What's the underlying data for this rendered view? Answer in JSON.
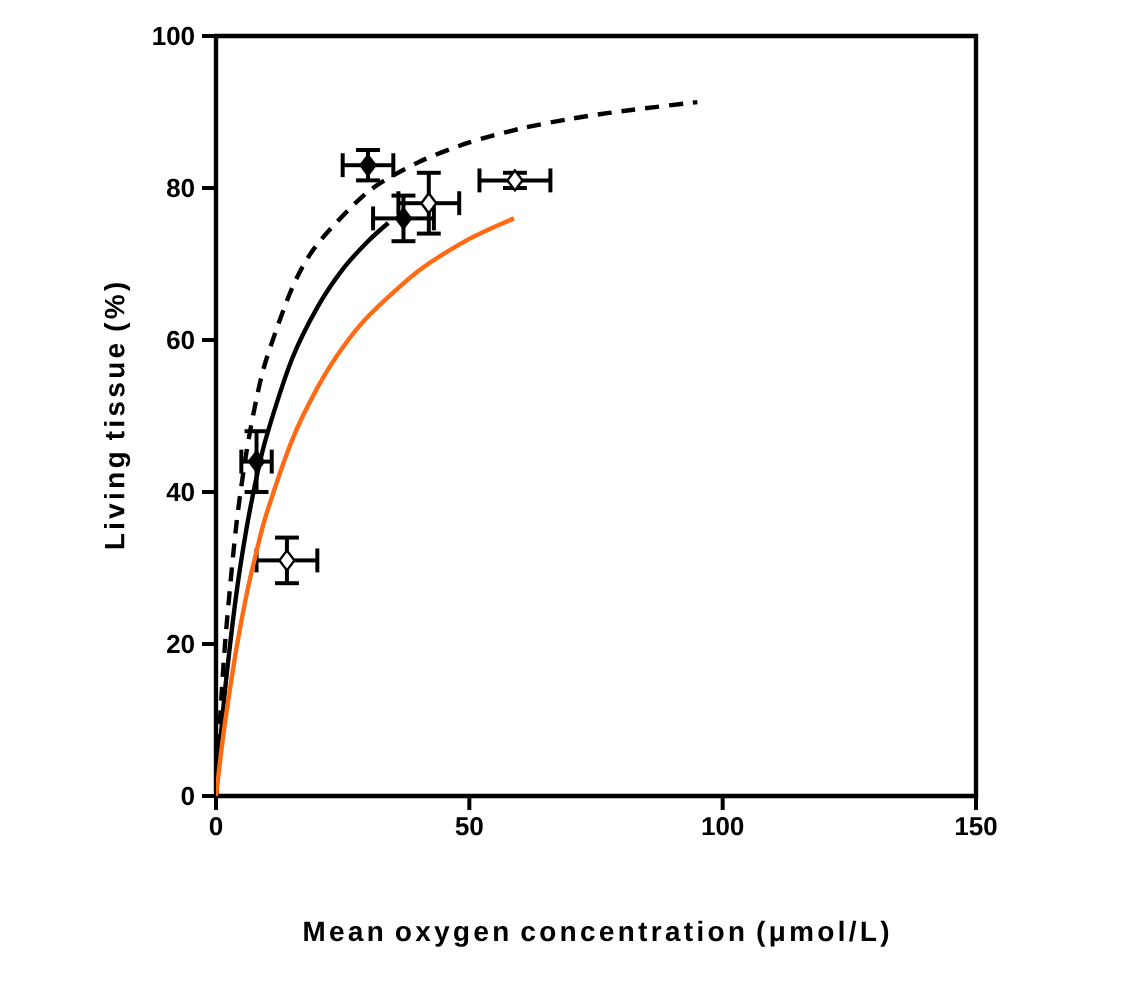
{
  "chart_data": {
    "type": "scatter",
    "xlabel": "Mean oxygen concentration (μmol/L)",
    "ylabel": "Living tissue (%)",
    "xlim": [
      0,
      150
    ],
    "ylim": [
      0,
      100
    ],
    "xticks": [
      0,
      50,
      100,
      150
    ],
    "yticks": [
      0,
      20,
      40,
      60,
      80,
      100
    ],
    "marker": "diamond",
    "series": [
      {
        "color": "#000000",
        "x": [
          8,
          30,
          37
        ],
        "values": [
          44,
          83,
          76
        ],
        "errors": [
          4,
          2,
          3
        ],
        "xerrors": [
          3,
          5,
          6
        ]
      },
      {
        "color": "#ffffff",
        "x": [
          14,
          42,
          59
        ],
        "values": [
          31,
          78,
          81
        ],
        "errors": [
          3,
          4,
          1
        ],
        "xerrors": [
          6,
          6,
          7
        ]
      },
      {
        "type": "line",
        "color": "#000000",
        "line_style": "solid",
        "marker": "none",
        "x": [
          0,
          1,
          2,
          4,
          6,
          8,
          10,
          15,
          20,
          25,
          30,
          34
        ],
        "values": [
          0,
          8.3,
          15.3,
          26.5,
          35.1,
          41.9,
          47.4,
          57.5,
          64.3,
          69.3,
          73.0,
          75.4
        ]
      },
      {
        "type": "line",
        "color": "#000000",
        "line_style": "dashed",
        "marker": "none",
        "x": [
          0,
          1,
          2,
          4,
          6,
          8,
          10,
          15,
          20,
          30,
          40,
          50,
          60,
          70,
          80,
          95
        ],
        "values": [
          0,
          12.3,
          21.8,
          35.6,
          45.2,
          52.3,
          57.6,
          66.8,
          72.6,
          79.5,
          83.4,
          86.0,
          87.8,
          89.1,
          90.1,
          91.3
        ]
      },
      {
        "type": "line",
        "color": "#ff6a13",
        "line_style": "solid",
        "marker": "none",
        "x": [
          0,
          1,
          2,
          4,
          6,
          8,
          10,
          15,
          20,
          25,
          30,
          40,
          50,
          58.8
        ],
        "values": [
          0,
          5.7,
          10.7,
          19.3,
          26.4,
          32.2,
          37.2,
          46.8,
          53.7,
          59.0,
          63.1,
          69.1,
          73.3,
          76.0
        ]
      }
    ]
  }
}
